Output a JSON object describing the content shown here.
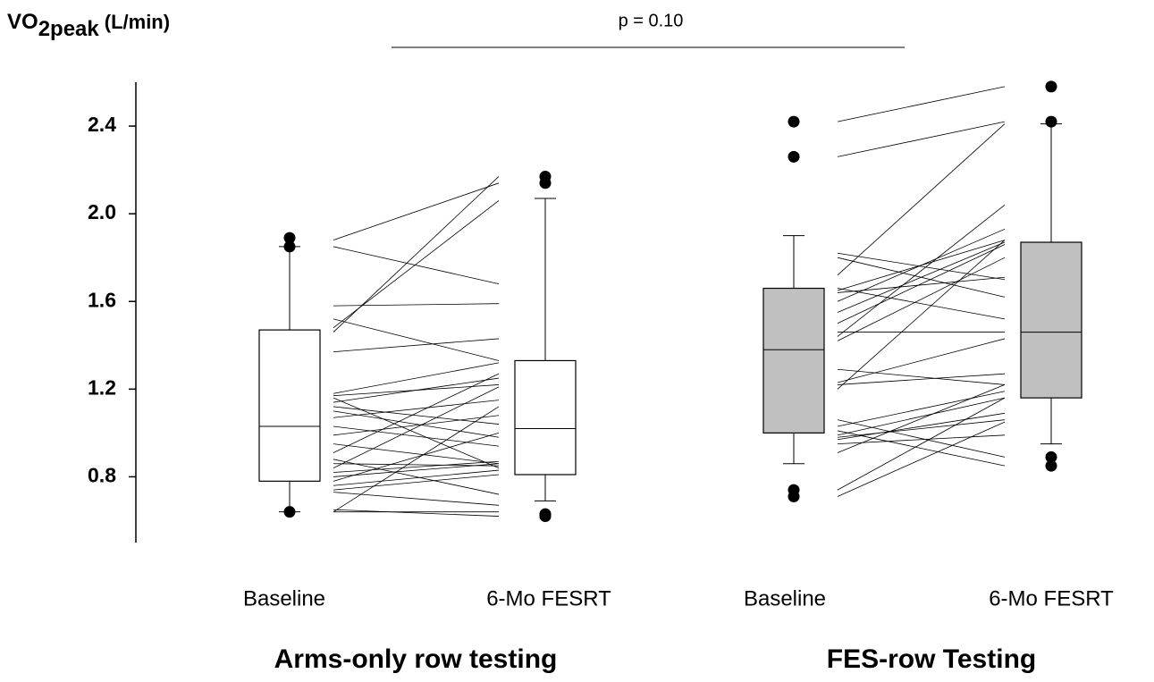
{
  "chart_data": {
    "type": "box",
    "ylabel": "VO",
    "ylabel_sub": "2peak",
    "ylabel_unit": "(L/min)",
    "annotation": "p = 0.10",
    "ylim": [
      0.5,
      2.6
    ],
    "yticks": [
      0.8,
      1.2,
      1.6,
      {
        "value": 2,
        "label": "2.0"
      },
      2.4
    ],
    "groups": [
      {
        "name": "Arms-only row testing",
        "boxes": [
          {
            "category": "Baseline",
            "fill": "#ffffff",
            "whisker_low": 0.64,
            "q1": 0.78,
            "median": 1.03,
            "q3": 1.47,
            "whisker_high": 1.85,
            "outliers": [
              1.89,
              1.85,
              0.64
            ]
          },
          {
            "category": "6-Mo FESRT",
            "fill": "#ffffff",
            "whisker_low": 0.69,
            "q1": 0.81,
            "median": 1.02,
            "q3": 1.33,
            "whisker_high": 2.07,
            "outliers": [
              2.17,
              2.14,
              0.62,
              0.63
            ]
          }
        ],
        "pairs": [
          [
            1.88,
            2.14
          ],
          [
            1.85,
            1.68
          ],
          [
            1.58,
            1.59
          ],
          [
            1.52,
            1.33
          ],
          [
            1.48,
            2.06
          ],
          [
            1.46,
            2.17
          ],
          [
            1.37,
            1.43
          ],
          [
            1.18,
            1.32
          ],
          [
            1.17,
            1.22
          ],
          [
            1.16,
            0.84
          ],
          [
            1.14,
            1.25
          ],
          [
            1.12,
            1.04
          ],
          [
            1.1,
            0.98
          ],
          [
            1.07,
            1.15
          ],
          [
            1.03,
            0.94
          ],
          [
            0.99,
            1.08
          ],
          [
            0.95,
            0.86
          ],
          [
            0.91,
            1.27
          ],
          [
            0.88,
            0.72
          ],
          [
            0.86,
            0.85
          ],
          [
            0.84,
            1.21
          ],
          [
            0.82,
            0.87
          ],
          [
            0.8,
            0.86
          ],
          [
            0.78,
            1.0
          ],
          [
            0.76,
            0.83
          ],
          [
            0.74,
            0.81
          ],
          [
            0.73,
            0.67
          ],
          [
            0.65,
            0.62
          ],
          [
            0.64,
            0.64
          ],
          [
            0.64,
            1.12
          ]
        ]
      },
      {
        "name": "FES-row Testing",
        "boxes": [
          {
            "category": "Baseline",
            "fill": "#c0c0c0",
            "whisker_low": 0.86,
            "q1": 1.0,
            "median": 1.38,
            "q3": 1.66,
            "whisker_high": 1.9,
            "outliers": [
              2.42,
              2.26,
              0.74,
              0.71
            ]
          },
          {
            "category": "6-Mo FESRT",
            "fill": "#c0c0c0",
            "whisker_low": 0.95,
            "q1": 1.16,
            "median": 1.46,
            "q3": 1.87,
            "whisker_high": 2.41,
            "outliers": [
              2.58,
              2.42,
              0.89,
              0.85
            ]
          }
        ],
        "pairs": [
          [
            2.42,
            2.58
          ],
          [
            2.26,
            2.42
          ],
          [
            1.82,
            1.7
          ],
          [
            1.8,
            1.62
          ],
          [
            1.72,
            2.41
          ],
          [
            1.66,
            1.52
          ],
          [
            1.65,
            1.88
          ],
          [
            1.64,
            1.71
          ],
          [
            1.6,
            1.93
          ],
          [
            1.55,
            1.87
          ],
          [
            1.5,
            1.86
          ],
          [
            1.46,
            1.46
          ],
          [
            1.44,
            2.04
          ],
          [
            1.42,
            1.8
          ],
          [
            1.29,
            1.22
          ],
          [
            1.23,
            1.43
          ],
          [
            1.22,
            1.27
          ],
          [
            1.2,
            1.88
          ],
          [
            1.06,
            0.89
          ],
          [
            1.03,
            1.19
          ],
          [
            1.01,
            0.85
          ],
          [
            0.99,
            1.16
          ],
          [
            0.98,
            1.06
          ],
          [
            0.97,
            1.09
          ],
          [
            0.95,
            0.99
          ],
          [
            0.91,
            1.22
          ],
          [
            0.74,
            1.16
          ],
          [
            0.71,
            1.05
          ]
        ]
      }
    ]
  }
}
